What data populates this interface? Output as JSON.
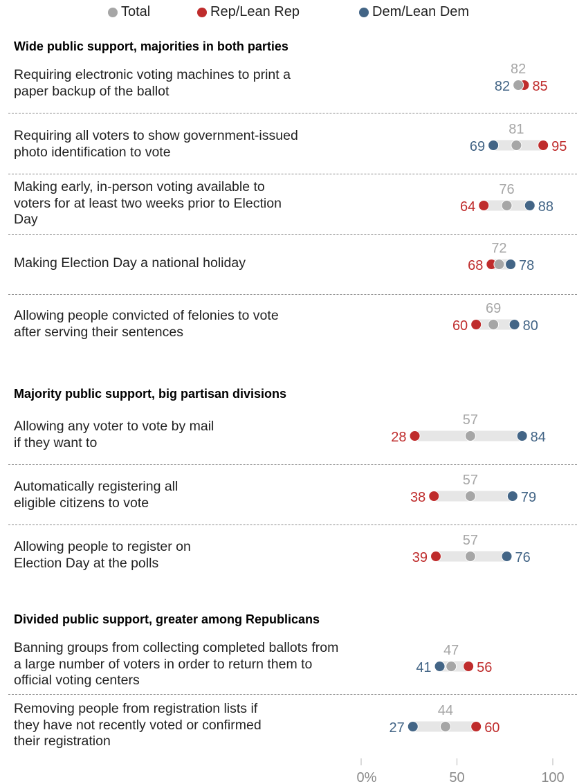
{
  "legend": {
    "total": "Total",
    "rep": "Rep/Lean Rep",
    "dem": "Dem/Lean Dem"
  },
  "colors": {
    "total": "#a6a6a6",
    "rep": "#bf2c2c",
    "dem": "#436586",
    "bar": "#e6e6e6",
    "axis_text": "#8a8a8a"
  },
  "chart_data": {
    "type": "dot",
    "xlim": [
      0,
      100
    ],
    "x_ticks": [
      {
        "value": 0,
        "label": "0%"
      },
      {
        "value": 50,
        "label": "50"
      },
      {
        "value": 100,
        "label": "100"
      }
    ],
    "series_names": [
      "Total",
      "Rep/Lean Rep",
      "Dem/Lean Dem"
    ],
    "sections": [
      {
        "title": "Wide public support, majorities in both parties",
        "items": [
          {
            "label": "Requiring electronic voting machines to print a paper backup of the ballot",
            "total": 82,
            "rep": 85,
            "dem": 82
          },
          {
            "label": "Requiring all voters to show government-issued photo identification to vote",
            "total": 81,
            "rep": 95,
            "dem": 69
          },
          {
            "label": "Making early, in-person voting available to voters for at least two weeks prior to Election Day",
            "total": 76,
            "rep": 64,
            "dem": 88
          },
          {
            "label": "Making Election Day a national holiday",
            "total": 72,
            "rep": 68,
            "dem": 78
          },
          {
            "label": "Allowing people convicted of felonies to vote after serving their sentences",
            "total": 69,
            "rep": 60,
            "dem": 80
          }
        ]
      },
      {
        "title": "Majority public support, big partisan divisions",
        "items": [
          {
            "label": "Allowing any voter to vote by mail if they want to",
            "total": 57,
            "rep": 28,
            "dem": 84
          },
          {
            "label": "Automatically registering all eligible citizens to vote",
            "total": 57,
            "rep": 38,
            "dem": 79
          },
          {
            "label": "Allowing people to register on Election Day at the polls",
            "total": 57,
            "rep": 39,
            "dem": 76
          }
        ]
      },
      {
        "title": "Divided public support, greater among Republicans",
        "items": [
          {
            "label": "Banning groups from collecting completed ballots from a large number of voters in order to return them to official voting centers",
            "total": 47,
            "rep": 56,
            "dem": 41
          },
          {
            "label": "Removing people from registration lists if they have not recently voted or confirmed their registration",
            "total": 44,
            "rep": 60,
            "dem": 27
          }
        ]
      }
    ]
  }
}
